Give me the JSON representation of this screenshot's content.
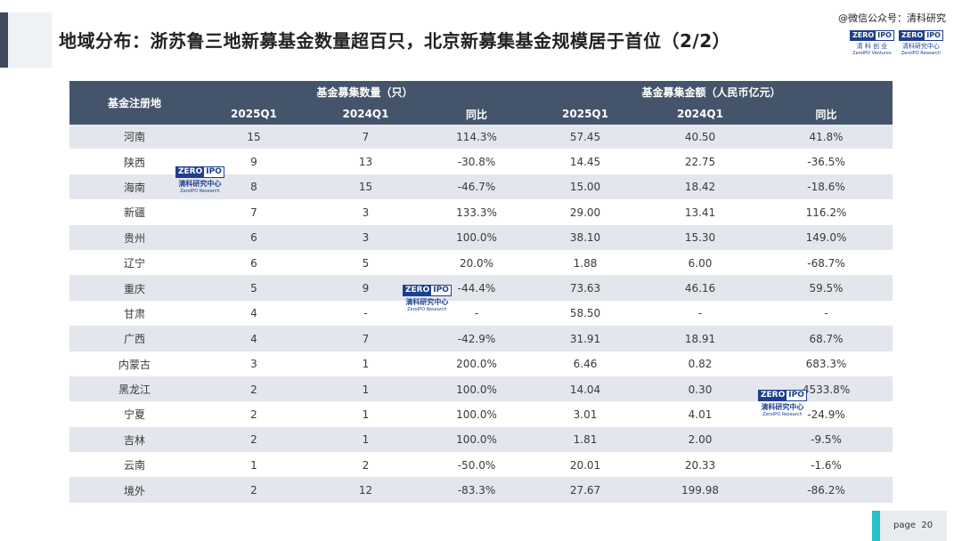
{
  "header": {
    "title": "地域分布：浙苏鲁三地新募基金数量超百只，北京新募集基金规模居于首位（2/2）",
    "wechat": "@微信公众号：清科研究"
  },
  "logos": {
    "zero_text": "ZERO",
    "ipo_text": "IPO",
    "logo1_cn": "清 科 创 业",
    "logo1_en": "ZeroIPO Ventures",
    "logo2_cn": "清科研究中心",
    "logo2_en": "ZeroIPO Research"
  },
  "table": {
    "col_region": "基金注册地",
    "group_count": "基金募集数量（只）",
    "group_amount": "基金募集金额（人民币亿元）",
    "sub_2025": "2025Q1",
    "sub_2024": "2024Q1",
    "sub_yoy": "同比",
    "rows": [
      {
        "region": "河南",
        "c25": "15",
        "c24": "7",
        "cy": "114.3%",
        "a25": "57.45",
        "a24": "40.50",
        "ay": "41.8%"
      },
      {
        "region": "陕西",
        "c25": "9",
        "c24": "13",
        "cy": "-30.8%",
        "a25": "14.45",
        "a24": "22.75",
        "ay": "-36.5%"
      },
      {
        "region": "海南",
        "c25": "8",
        "c24": "15",
        "cy": "-46.7%",
        "a25": "15.00",
        "a24": "18.42",
        "ay": "-18.6%"
      },
      {
        "region": "新疆",
        "c25": "7",
        "c24": "3",
        "cy": "133.3%",
        "a25": "29.00",
        "a24": "13.41",
        "ay": "116.2%"
      },
      {
        "region": "贵州",
        "c25": "6",
        "c24": "3",
        "cy": "100.0%",
        "a25": "38.10",
        "a24": "15.30",
        "ay": "149.0%"
      },
      {
        "region": "辽宁",
        "c25": "6",
        "c24": "5",
        "cy": "20.0%",
        "a25": "1.88",
        "a24": "6.00",
        "ay": "-68.7%"
      },
      {
        "region": "重庆",
        "c25": "5",
        "c24": "9",
        "cy": "-44.4%",
        "a25": "73.63",
        "a24": "46.16",
        "ay": "59.5%"
      },
      {
        "region": "甘肃",
        "c25": "4",
        "c24": "-",
        "cy": "-",
        "a25": "58.50",
        "a24": "-",
        "ay": "-"
      },
      {
        "region": "广西",
        "c25": "4",
        "c24": "7",
        "cy": "-42.9%",
        "a25": "31.91",
        "a24": "18.91",
        "ay": "68.7%"
      },
      {
        "region": "内蒙古",
        "c25": "3",
        "c24": "1",
        "cy": "200.0%",
        "a25": "6.46",
        "a24": "0.82",
        "ay": "683.3%"
      },
      {
        "region": "黑龙江",
        "c25": "2",
        "c24": "1",
        "cy": "100.0%",
        "a25": "14.04",
        "a24": "0.30",
        "ay": "4533.8%"
      },
      {
        "region": "宁夏",
        "c25": "2",
        "c24": "1",
        "cy": "100.0%",
        "a25": "3.01",
        "a24": "4.01",
        "ay": "-24.9%"
      },
      {
        "region": "吉林",
        "c25": "2",
        "c24": "1",
        "cy": "100.0%",
        "a25": "1.81",
        "a24": "2.00",
        "ay": "-9.5%"
      },
      {
        "region": "云南",
        "c25": "1",
        "c24": "2",
        "cy": "-50.0%",
        "a25": "20.01",
        "a24": "20.33",
        "ay": "-1.6%"
      },
      {
        "region": "境外",
        "c25": "2",
        "c24": "12",
        "cy": "-83.3%",
        "a25": "27.67",
        "a24": "199.98",
        "ay": "-86.2%"
      }
    ]
  },
  "footer": {
    "page_label": "page",
    "page_number": "20"
  },
  "colors": {
    "header_bg": "#44546a",
    "stripe": "#e3e6ec",
    "accent": "#25c0c9",
    "logo_blue": "#1d3f8f"
  }
}
